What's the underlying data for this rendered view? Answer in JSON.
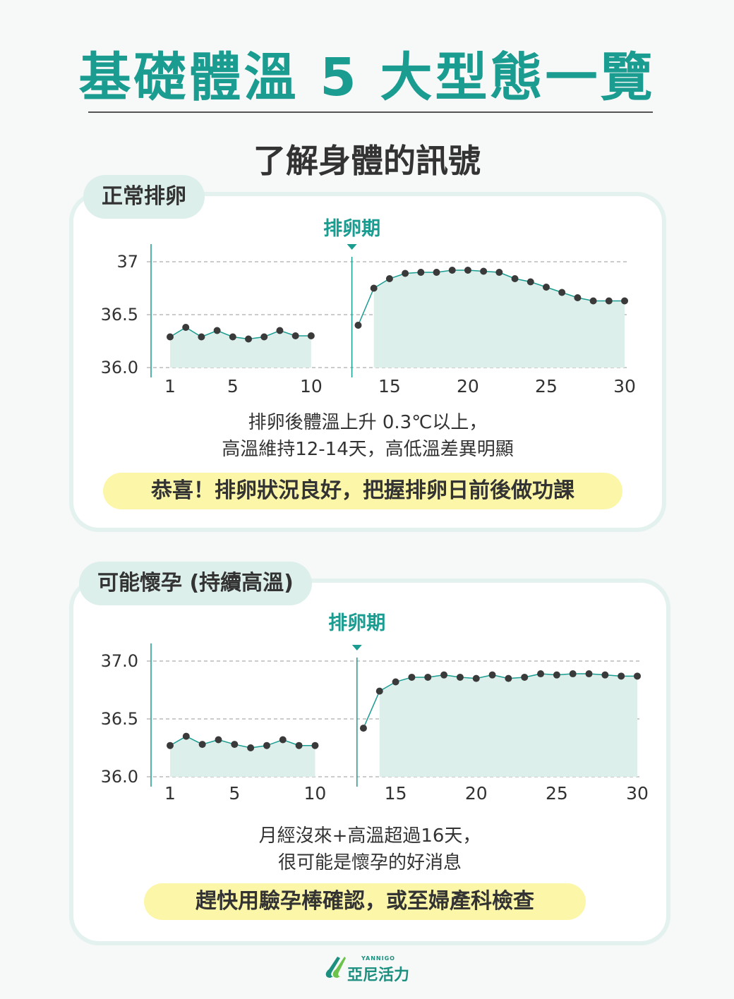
{
  "header": {
    "title": "基礎體溫 5 大型態一覽",
    "subtitle": "了解身體的訊號"
  },
  "colors": {
    "accent": "#1a9c90",
    "fill": "#dcefeb",
    "point": "#3a3a3a",
    "highlight": "#fcf7a8"
  },
  "sections": [
    {
      "tag": "正常排卵",
      "caption_lines": [
        "排卵後體溫上升 0.3℃以上，",
        "高溫維持12-14天，高低溫差異明顯"
      ],
      "highlight": "恭喜！排卵狀況良好，把握排卵日前後做功課"
    },
    {
      "tag": "可能懷孕 (持續高溫)",
      "caption_lines": [
        "月經沒來+高溫超過16天，",
        "很可能是懷孕的好消息"
      ],
      "highlight": "趕快用驗孕棒確認，或至婦產科檢查"
    }
  ],
  "chart_data": [
    {
      "type": "line",
      "ovulation_label": "排卵期",
      "ovulation_day": 12.6,
      "ylim": [
        36.0,
        37.0
      ],
      "yticks": [
        "36.0",
        "36.5",
        "37"
      ],
      "ytick_values": [
        36.0,
        36.5,
        37.0
      ],
      "xlim": [
        0,
        31
      ],
      "xticks": [
        1,
        5,
        10,
        15,
        20,
        25,
        30
      ],
      "series": [
        {
          "x": [
            1,
            2,
            3,
            4,
            5,
            6,
            7,
            8,
            9,
            10
          ],
          "y": [
            36.29,
            36.38,
            36.29,
            36.35,
            36.29,
            36.27,
            36.29,
            36.35,
            36.3,
            36.3
          ]
        },
        {
          "x": [
            13,
            14,
            15,
            16,
            17,
            18,
            19,
            20,
            21,
            22,
            23,
            24,
            25,
            26,
            27,
            28,
            29,
            30
          ],
          "y": [
            36.4,
            36.75,
            36.84,
            36.89,
            36.9,
            36.9,
            36.92,
            36.92,
            36.91,
            36.9,
            36.84,
            36.81,
            36.76,
            36.71,
            36.66,
            36.63,
            36.63,
            36.63
          ]
        }
      ]
    },
    {
      "type": "line",
      "ovulation_label": "排卵期",
      "ovulation_day": 12.6,
      "ylim": [
        36.0,
        37.0
      ],
      "yticks": [
        "36.0",
        "36.5",
        "37.0"
      ],
      "ytick_values": [
        36.0,
        36.5,
        37.0
      ],
      "xlim": [
        0,
        31
      ],
      "xticks": [
        1,
        5,
        10,
        15,
        20,
        25,
        30
      ],
      "series": [
        {
          "x": [
            1,
            2,
            3,
            4,
            5,
            6,
            7,
            8,
            9,
            10
          ],
          "y": [
            36.27,
            36.35,
            36.28,
            36.32,
            36.28,
            36.25,
            36.27,
            36.32,
            36.27,
            36.27
          ]
        },
        {
          "x": [
            13,
            14,
            15,
            16,
            17,
            18,
            19,
            20,
            21,
            22,
            23,
            24,
            25,
            26,
            27,
            28,
            29,
            30
          ],
          "y": [
            36.42,
            36.74,
            36.82,
            36.86,
            36.86,
            36.88,
            36.86,
            36.85,
            36.88,
            36.85,
            36.86,
            36.89,
            36.88,
            36.89,
            36.89,
            36.88,
            36.87,
            36.87
          ]
        }
      ]
    }
  ],
  "brand": {
    "small": "YANNIGO",
    "name": "亞尼活力"
  }
}
